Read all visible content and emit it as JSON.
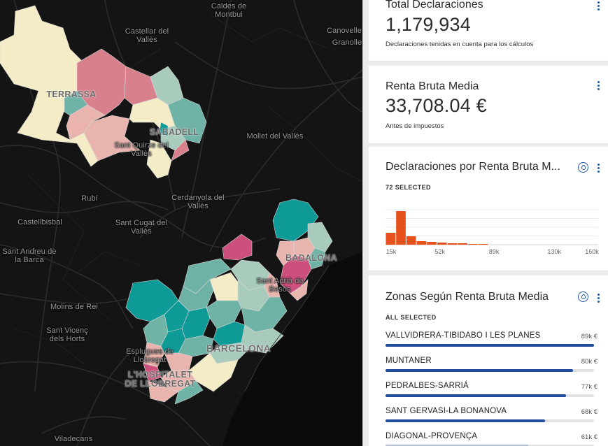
{
  "map": {
    "places": [
      {
        "id": "caldes",
        "text": "Caldes de\nMontbui"
      },
      {
        "id": "castellar",
        "text": "Castellar del\nVallès"
      },
      {
        "id": "canovelles",
        "text": "Canovelle"
      },
      {
        "id": "granollers",
        "text": "Granolle"
      },
      {
        "id": "santquirze",
        "text": "Sant Quirze del\nVallès"
      },
      {
        "id": "mollet",
        "text": "Mollet del Vallès"
      },
      {
        "id": "rubi",
        "text": "Rubí"
      },
      {
        "id": "cerdanyola",
        "text": "Cerdanyola del\nVallès"
      },
      {
        "id": "castellbisbal",
        "text": "Castellbisbal"
      },
      {
        "id": "santcugat",
        "text": "Sant Cugat del\nVallès"
      },
      {
        "id": "santandreu",
        "text": "Sant Andreu de\nla Barca"
      },
      {
        "id": "santadria",
        "text": "Sant Adrià de\nBesòs"
      },
      {
        "id": "molins",
        "text": "Molins de Rei"
      },
      {
        "id": "santvicenc",
        "text": "Sant Vicenç\ndels Horts"
      },
      {
        "id": "esplugues",
        "text": "Esplugues de\nLlobregat"
      },
      {
        "id": "viladecans",
        "text": "Viladecans"
      }
    ],
    "cities": [
      {
        "id": "terrassa",
        "text": "TERRASSA"
      },
      {
        "id": "sabadell",
        "text": "SABADELL"
      },
      {
        "id": "badalona",
        "text": "BADALONA"
      },
      {
        "id": "barcelona",
        "text": "BARCELONA"
      },
      {
        "id": "hospitalet",
        "text": "L'HOSPITALET\nDE LLOBREGAT"
      }
    ],
    "colors": {
      "teal": "#0e9a97",
      "teal_mid": "#6fb3a6",
      "sage": "#a8cbbc",
      "cream": "#f3ecc6",
      "pink": "#e9b4ae",
      "rose": "#d9808d",
      "magenta": "#cc4f7e"
    }
  },
  "cards": {
    "total": {
      "title": "Total Declaraciones",
      "value": "1,179,934",
      "note": "Declaraciones tenidas en cuenta para los cálculos"
    },
    "renta": {
      "title": "Renta Bruta Media",
      "value": "33,708.04 €",
      "note": "Antes de impuestos"
    },
    "histogram": {
      "title": "Declaraciones por Renta Bruta M...",
      "selected": "72 SELECTED",
      "chart_data": {
        "type": "bar",
        "x_start": 15,
        "x_end": 160,
        "bin_width": 7,
        "values": [
          17,
          48,
          12,
          5,
          4,
          3,
          2,
          2,
          1,
          1,
          0,
          0,
          0,
          0,
          0,
          0,
          0,
          0,
          0,
          0
        ],
        "ylim": [
          0,
          50
        ],
        "tick_labels": [
          "15k",
          "52k",
          "89k",
          "130k",
          "160k"
        ],
        "tick_values": [
          15,
          52,
          89,
          130,
          160
        ],
        "color": "#e8501c",
        "grid": true
      }
    },
    "zonas": {
      "title": "Zonas Según Renta Bruta Media",
      "selected": "ALL SELECTED",
      "items": [
        {
          "name": "VALLVIDRERA-TIBIDABO I LES PLANES",
          "value": "89k €",
          "fraction": 1.0
        },
        {
          "name": "MUNTANER",
          "value": "80k €",
          "fraction": 0.9
        },
        {
          "name": "PEDRALBES-SARRIÁ",
          "value": "77k €",
          "fraction": 0.865
        },
        {
          "name": "SANT GERVASI-LA BONANOVA",
          "value": "68k €",
          "fraction": 0.765
        },
        {
          "name": "DIAGONAL-PROVENÇA",
          "value": "61k €",
          "fraction": 0.685
        }
      ]
    }
  }
}
